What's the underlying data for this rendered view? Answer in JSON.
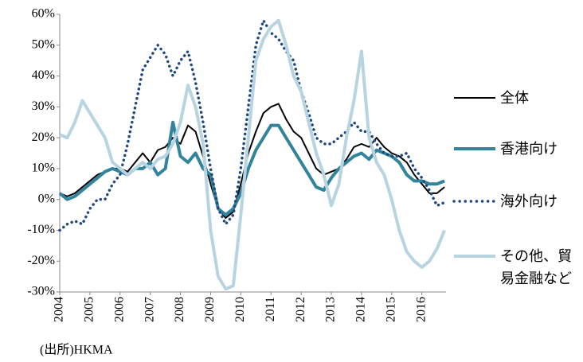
{
  "chart_data": {
    "type": "line",
    "x": [
      2004,
      2004.25,
      2004.5,
      2004.75,
      2005,
      2005.25,
      2005.5,
      2005.75,
      2006,
      2006.25,
      2006.5,
      2006.75,
      2007,
      2007.25,
      2007.5,
      2007.75,
      2008,
      2008.25,
      2008.5,
      2008.75,
      2009,
      2009.25,
      2009.5,
      2009.75,
      2010,
      2010.25,
      2010.5,
      2010.75,
      2011,
      2011.25,
      2011.5,
      2011.75,
      2012,
      2012.25,
      2012.5,
      2012.75,
      2013,
      2013.25,
      2013.5,
      2013.75,
      2014,
      2014.25,
      2014.5,
      2014.75,
      2015,
      2015.25,
      2015.5,
      2015.75,
      2016,
      2016.25,
      2016.5,
      2016.75
    ],
    "series": [
      {
        "name": "全体",
        "color": "#000000",
        "dash": false,
        "width": 2,
        "values": [
          2,
          1,
          2,
          4,
          6,
          8,
          9,
          10,
          10,
          9,
          12,
          15,
          12,
          16,
          17,
          20,
          18,
          24,
          22,
          14,
          5,
          -3,
          -6,
          -4,
          5,
          15,
          22,
          28,
          30,
          31,
          26,
          22,
          20,
          15,
          10,
          8,
          9,
          10,
          13,
          17,
          18,
          17,
          20,
          17,
          15,
          14,
          12,
          8,
          5,
          2,
          2,
          4
        ]
      },
      {
        "name": "香港向け",
        "color": "#31849b",
        "dash": false,
        "width": 4,
        "values": [
          2,
          0,
          1,
          3,
          5,
          7,
          9,
          10,
          9,
          8,
          10,
          10,
          12,
          8,
          10,
          25,
          14,
          12,
          15,
          10,
          8,
          -3,
          -5,
          -3,
          2,
          10,
          16,
          20,
          24,
          24,
          20,
          16,
          12,
          8,
          4,
          3,
          7,
          10,
          12,
          14,
          15,
          13,
          16,
          15,
          14,
          12,
          8,
          6,
          6,
          5,
          5,
          6
        ]
      },
      {
        "name": "海外向け",
        "color": "#1f497d",
        "dash": true,
        "width": 3.5,
        "values": [
          -10,
          -8,
          -7,
          -8,
          -3,
          0,
          0,
          5,
          8,
          18,
          30,
          42,
          46,
          50,
          47,
          40,
          45,
          48,
          38,
          25,
          10,
          -3,
          -8,
          -5,
          10,
          30,
          50,
          58,
          54,
          52,
          48,
          45,
          35,
          28,
          20,
          18,
          18,
          20,
          22,
          25,
          22,
          22,
          18,
          15,
          14,
          14,
          15,
          10,
          7,
          3,
          -2,
          -1
        ]
      },
      {
        "name": "その他、貿易金融など",
        "color": "#b7d4e0",
        "dash": false,
        "width": 4,
        "values": [
          21,
          20,
          25,
          32,
          28,
          24,
          20,
          12,
          10,
          8,
          10,
          12,
          10,
          13,
          14,
          18,
          25,
          37,
          30,
          18,
          -10,
          -25,
          -29,
          -28,
          -5,
          20,
          45,
          52,
          56,
          58,
          50,
          40,
          35,
          25,
          15,
          8,
          -2,
          5,
          20,
          32,
          48,
          20,
          12,
          8,
          0,
          -10,
          -17,
          -20,
          -22,
          -20,
          -16,
          -10
        ]
      }
    ],
    "xlim": [
      2004,
      2016.8
    ],
    "xticks": [
      2004,
      2005,
      2006,
      2007,
      2008,
      2009,
      2010,
      2011,
      2012,
      2013,
      2014,
      2015,
      2016
    ],
    "ylim": [
      -30,
      60
    ],
    "yticks": [
      {
        "value": -30,
        "label": "-30%"
      },
      {
        "value": -20,
        "label": "-20%"
      },
      {
        "value": -10,
        "label": "-10%"
      },
      {
        "value": 0,
        "label": "0%"
      },
      {
        "value": 10,
        "label": "10%"
      },
      {
        "value": 20,
        "label": "20%"
      },
      {
        "value": 30,
        "label": "30%"
      },
      {
        "value": 40,
        "label": "40%"
      },
      {
        "value": 50,
        "label": "50%"
      },
      {
        "value": 60,
        "label": "60%"
      }
    ],
    "source": "(出所)HKMA"
  }
}
